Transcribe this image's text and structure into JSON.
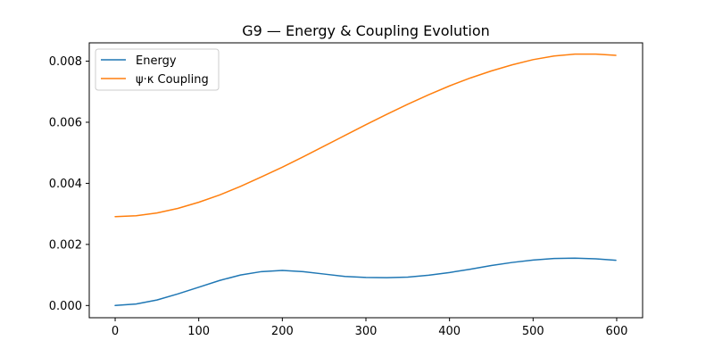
{
  "chart_data": {
    "type": "line",
    "title": "G9 — Energy & Coupling Evolution",
    "xlabel": "",
    "ylabel": "",
    "xlim": [
      -31,
      631
    ],
    "ylim": [
      -0.0004,
      0.0086
    ],
    "x_ticks": [
      0,
      100,
      200,
      300,
      400,
      500,
      600
    ],
    "y_ticks": [
      0.0,
      0.002,
      0.004,
      0.006,
      0.008
    ],
    "x_tick_labels": [
      "0",
      "100",
      "200",
      "300",
      "400",
      "500",
      "600"
    ],
    "y_tick_labels": [
      "0.000",
      "0.002",
      "0.004",
      "0.006",
      "0.008"
    ],
    "grid": false,
    "legend_position": "top-left",
    "x": [
      0,
      25,
      50,
      75,
      100,
      125,
      150,
      175,
      200,
      225,
      250,
      275,
      300,
      325,
      350,
      375,
      400,
      425,
      450,
      475,
      500,
      525,
      550,
      575,
      599
    ],
    "series": [
      {
        "name": "Energy",
        "color": "#1f77b4",
        "values": [
          0.0,
          5e-05,
          0.00018,
          0.00038,
          0.0006,
          0.00082,
          0.001,
          0.00111,
          0.00115,
          0.00111,
          0.00103,
          0.00095,
          0.00092,
          0.00091,
          0.00093,
          0.00099,
          0.00108,
          0.00119,
          0.00131,
          0.00141,
          0.00149,
          0.00154,
          0.00155,
          0.00153,
          0.00148
        ]
      },
      {
        "name": "ψ·κ Coupling",
        "color": "#ff7f0e",
        "values": [
          0.00291,
          0.00294,
          0.00303,
          0.00318,
          0.00338,
          0.00362,
          0.0039,
          0.00421,
          0.00453,
          0.00487,
          0.00522,
          0.00557,
          0.00592,
          0.00626,
          0.00659,
          0.0069,
          0.00719,
          0.00745,
          0.00768,
          0.00788,
          0.00805,
          0.00817,
          0.00823,
          0.00823,
          0.00819
        ]
      }
    ]
  }
}
